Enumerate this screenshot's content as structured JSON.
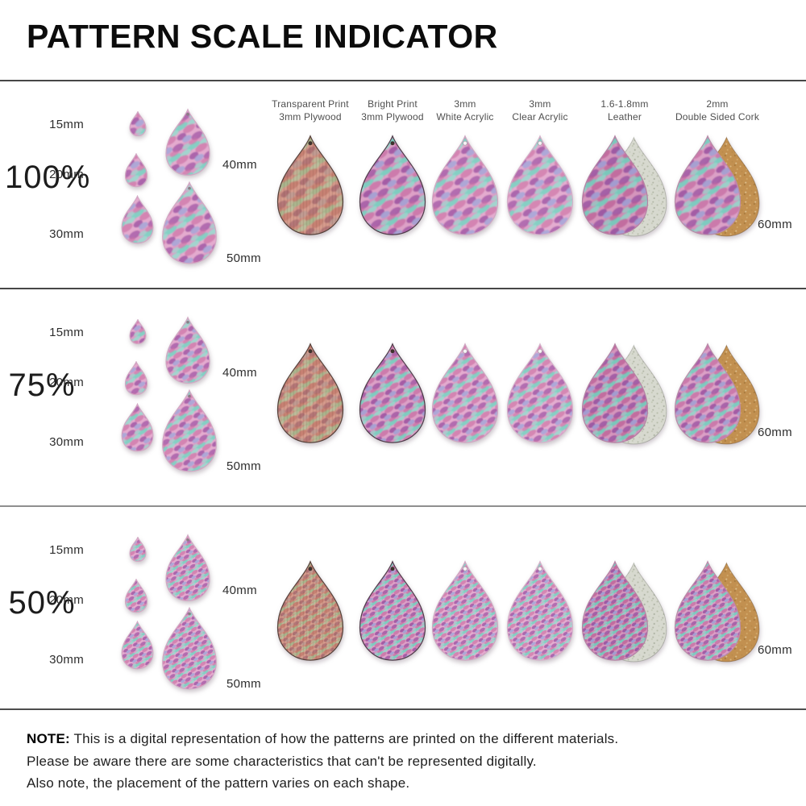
{
  "title": "PATTERN SCALE INDICATOR",
  "columns": [
    {
      "id": "transparent-plywood",
      "label_lines": [
        "Transparent Print",
        "3mm Plywood"
      ],
      "theme": "transparent_plywood"
    },
    {
      "id": "bright-plywood",
      "label_lines": [
        "Bright Print",
        "3mm Plywood"
      ],
      "theme": "bright_plywood"
    },
    {
      "id": "white-acrylic",
      "label_lines": [
        "3mm",
        "White Acrylic"
      ],
      "theme": "white_acrylic"
    },
    {
      "id": "clear-acrylic",
      "label_lines": [
        "3mm",
        "Clear Acrylic"
      ],
      "theme": "clear_acrylic"
    },
    {
      "id": "leather",
      "label_lines": [
        "1.6-1.8mm",
        "Leather"
      ],
      "theme": "leather"
    },
    {
      "id": "cork",
      "label_lines": [
        "2mm",
        "Double Sided Cork"
      ],
      "theme": "cork"
    }
  ],
  "rows": [
    {
      "scale_label": "100%",
      "pattern_scale": 0.7
    },
    {
      "scale_label": "75%",
      "pattern_scale": 0.53
    },
    {
      "scale_label": "50%",
      "pattern_scale": 0.35
    }
  ],
  "size_indicator": {
    "sizes": [
      "15mm",
      "20mm",
      "30mm",
      "40mm",
      "50mm"
    ]
  },
  "material_drop_size_label": "60mm",
  "note": {
    "prefix": "NOTE:",
    "lines": [
      "This is a digital representation of how the patterns are printed on the different materials.",
      "Please be aware there are some characteristics that can't be represented digitally.",
      "Also note, the placement of the pattern varies on each shape."
    ]
  },
  "themes": {
    "indicator": {
      "bg": "#dc9ec6",
      "light": "#eebad8",
      "teal": "#85cfc4",
      "teal2": "#9cd9cf",
      "deep_pink": "#cd74a6",
      "purple": "#a158a6",
      "lavender": "#a8a7d8",
      "edge": "#d2a9c4"
    },
    "transparent_plywood": {
      "bg": "#cf8f80",
      "light": "#dba695",
      "teal": "#a9b48c",
      "teal2": "#b8c09c",
      "deep_pink": "#bf7668",
      "purple": "#a86a70",
      "lavender": "#bd9a92",
      "edge": "#55413a",
      "hole": "dark",
      "grain": true
    },
    "bright_plywood": {
      "bg": "#d593be",
      "light": "#e5afd0",
      "teal": "#7fccc0",
      "teal2": "#97d6cb",
      "deep_pink": "#c66ba1",
      "purple": "#9b51a0",
      "lavender": "#a3a2d4",
      "edge": "#4e3b49",
      "hole": "dark"
    },
    "white_acrylic": {
      "bg": "#dc9ec6",
      "light": "#eebad8",
      "teal": "#85cfc4",
      "teal2": "#9cd9cf",
      "deep_pink": "#cd74a6",
      "purple": "#a158a6",
      "lavender": "#a8a7d8",
      "edge": "#cfa8c2",
      "hole": "light"
    },
    "clear_acrylic": {
      "bg": "#dc9fc7",
      "light": "#eebbd9",
      "teal": "#86cfc4",
      "teal2": "#9dd9cf",
      "deep_pink": "#ce76a7",
      "purple": "#a25aa7",
      "lavender": "#a9a8d9",
      "edge": "#d5b2ca",
      "hole": "light"
    },
    "leather": {
      "bg": "#cd89b2",
      "light": "#dda2c6",
      "teal": "#7ac7bb",
      "teal2": "#90d1c6",
      "deep_pink": "#bb5d94",
      "purple": "#944f9f",
      "lavender": "#9e9dd1",
      "edge": "#b583a5",
      "back": {
        "bg": "#d7d9cf",
        "edge": "rgba(95,100,85,0.35)",
        "dots": [
          "#b7bcaa",
          "#c3c7b6",
          "#aab0a0",
          "#c9ccbf",
          "#b2b7a6"
        ]
      }
    },
    "cork": {
      "bg": "#d493bd",
      "light": "#e4aecf",
      "teal": "#7ecbc0",
      "teal2": "#96d5ca",
      "deep_pink": "#c569a0",
      "purple": "#9a50a0",
      "lavender": "#a2a1d3",
      "edge": "#b98ca9",
      "back": {
        "bg": "#c29050",
        "edge": "rgba(100,65,25,0.45)",
        "dots": [
          "#d9b77e",
          "#a5793c",
          "#d3a969",
          "#b98a4a",
          "#dcc08e"
        ]
      }
    }
  }
}
